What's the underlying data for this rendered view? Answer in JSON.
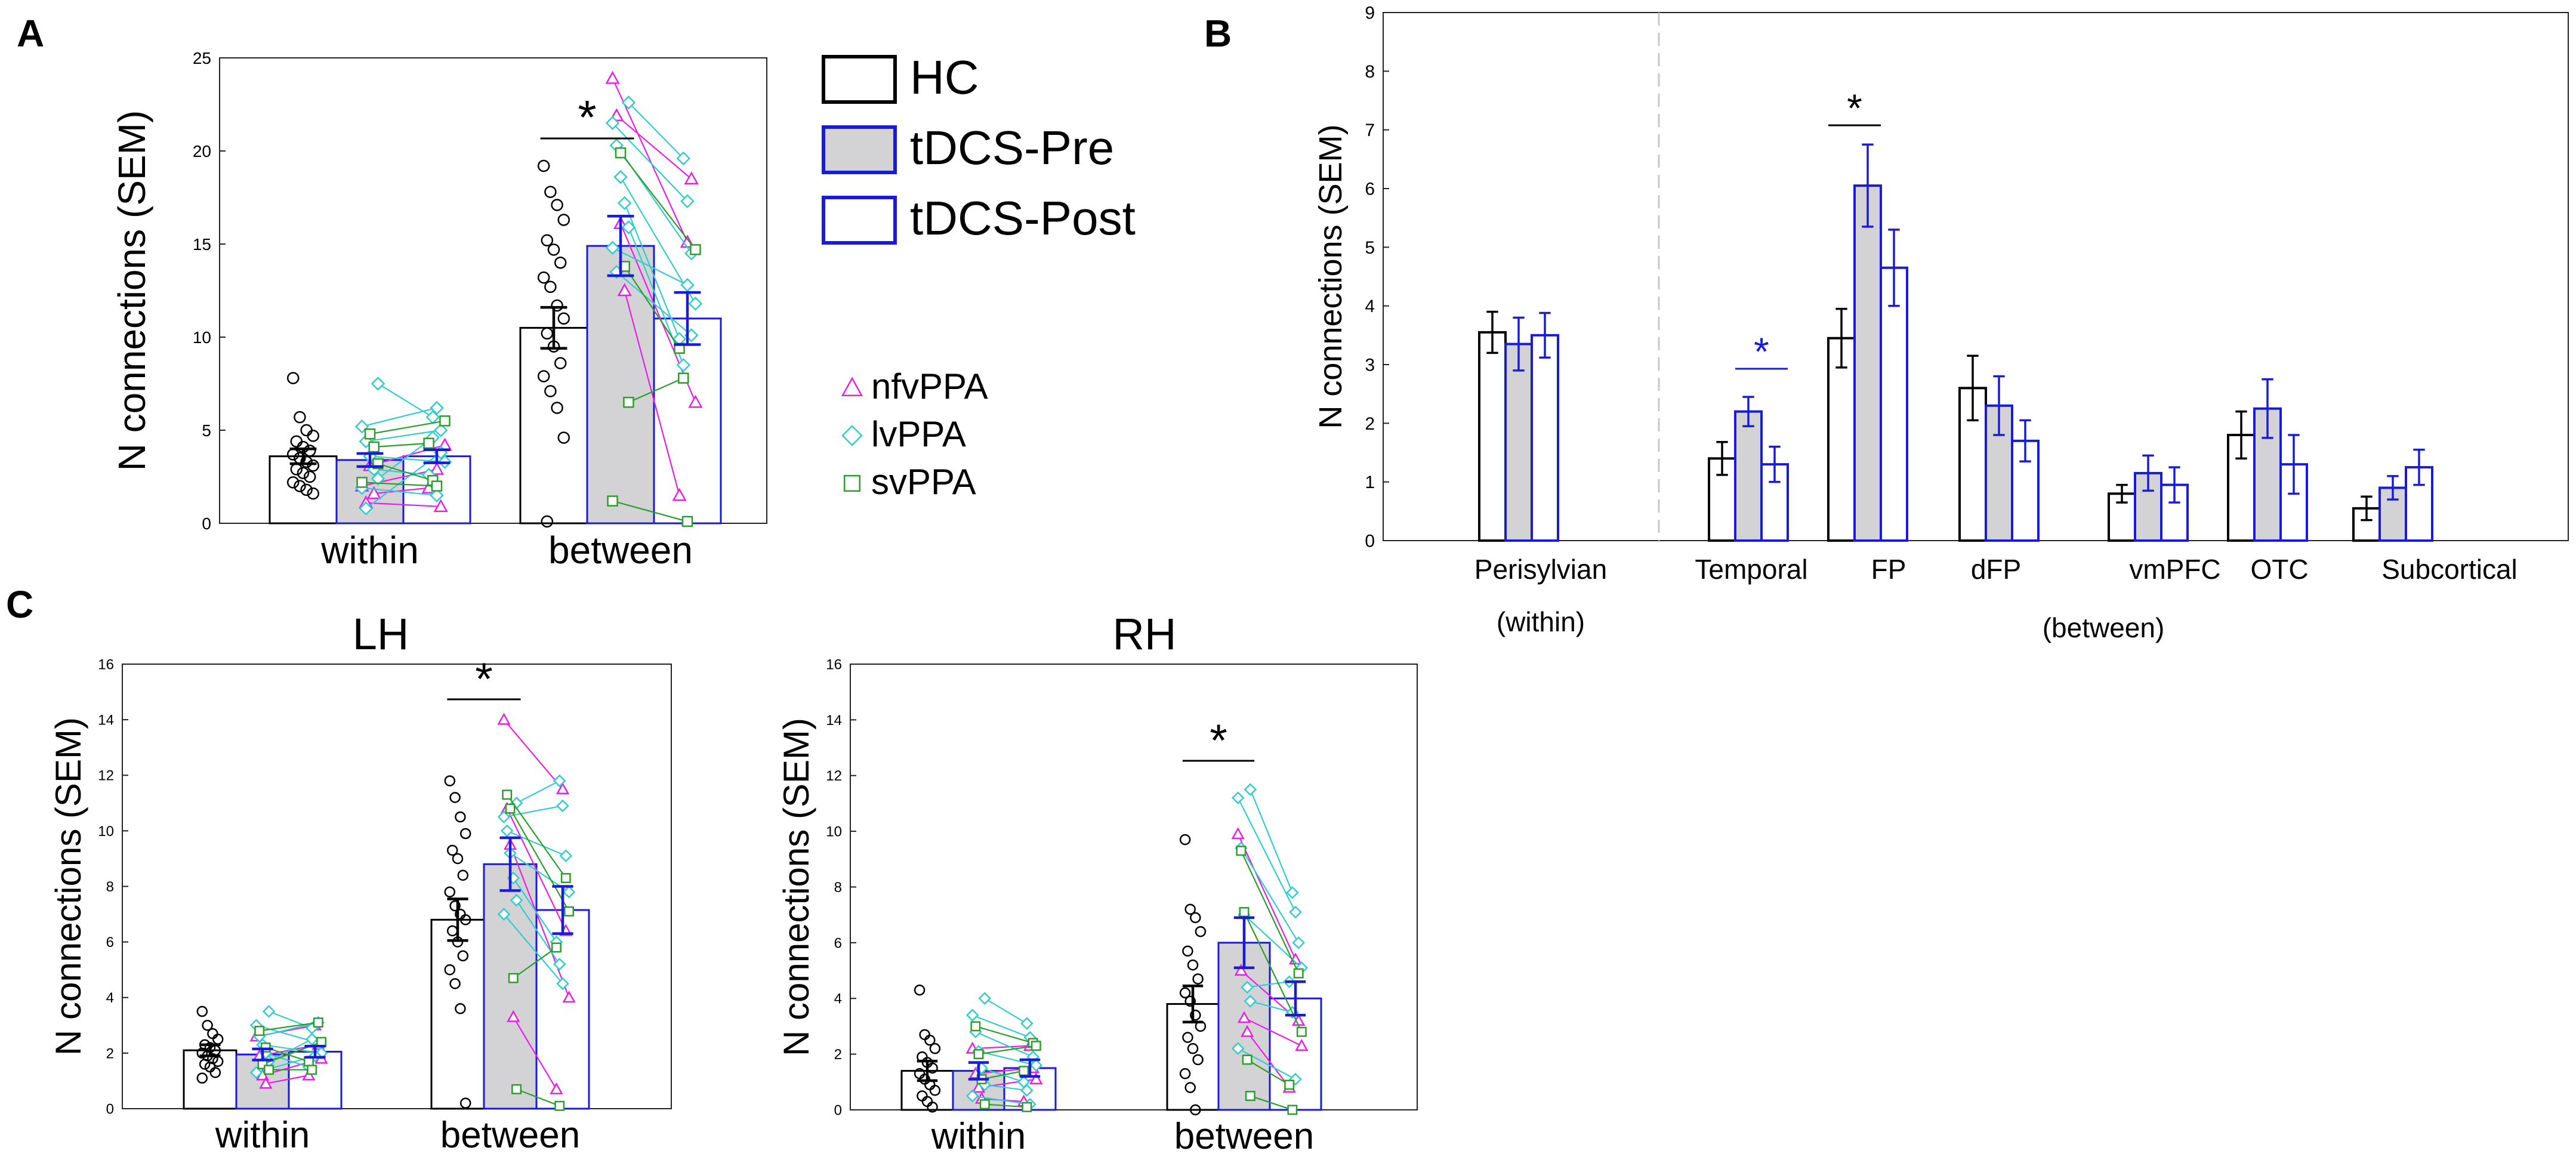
{
  "colors": {
    "hc": "#000000",
    "tdcs": "#1a1adb",
    "pre_fill": "#d3d3d6",
    "nfv": "#e81ee8",
    "lv": "#33cccc",
    "sv": "#2a9d2a",
    "dashed": "#c8c8c8"
  },
  "legend_groups": {
    "hc": "HC",
    "pre": "tDCS-Pre",
    "post": "tDCS-Post"
  },
  "legend_subtypes": {
    "nfv": "nfvPPA",
    "lv": "lvPPA",
    "sv": "svPPA"
  },
  "chart_data": [
    {
      "id": "A",
      "panel_label": "A",
      "type": "bar",
      "title": "",
      "ylabel": "N connections (SEM)",
      "ylim": [
        0,
        25
      ],
      "yticks": [
        "0",
        "5",
        "10",
        "15",
        "20",
        "25"
      ],
      "categories": [
        "within",
        "between"
      ],
      "series": [
        {
          "name": "HC",
          "values": [
            3.6,
            10.5
          ],
          "sem": [
            0.4,
            1.1
          ]
        },
        {
          "name": "tDCS-Pre",
          "values": [
            3.4,
            14.9
          ],
          "sem": [
            0.35,
            1.6
          ]
        },
        {
          "name": "tDCS-Post",
          "values": [
            3.6,
            11.0
          ],
          "sem": [
            0.35,
            1.4
          ]
        }
      ],
      "significance": [
        {
          "category": "between",
          "label": "*"
        }
      ],
      "hc_points": [
        [
          7.8,
          5.7,
          5.0,
          4.7,
          4.4,
          4.1,
          3.9,
          3.7,
          3.5,
          3.3,
          3.1,
          2.9,
          2.7,
          2.5,
          2.2,
          2.0,
          1.8,
          1.6
        ],
        [
          19.2,
          17.8,
          17.1,
          16.3,
          15.2,
          14.7,
          14.0,
          13.2,
          12.7,
          11.7,
          11.0,
          10.2,
          9.5,
          8.6,
          7.9,
          7.1,
          6.2,
          4.6,
          0.1
        ]
      ],
      "patients": [
        {
          "subtype": "nfv",
          "within": [
            2.0,
            2.9
          ],
          "between": [
            23.9,
            15.1
          ]
        },
        {
          "subtype": "nfv",
          "within": [
            1.1,
            0.9
          ],
          "between": [
            21.9,
            18.5
          ]
        },
        {
          "subtype": "nfv",
          "within": [
            3.1,
            4.2
          ],
          "between": [
            16.1,
            6.5
          ]
        },
        {
          "subtype": "nfv",
          "within": [
            1.6,
            1.9
          ],
          "between": [
            12.5,
            1.5
          ]
        },
        {
          "subtype": "lv",
          "within": [
            7.5,
            5.7
          ],
          "between": [
            22.6,
            19.6
          ]
        },
        {
          "subtype": "lv",
          "within": [
            5.2,
            6.2
          ],
          "between": [
            21.5,
            17.3
          ]
        },
        {
          "subtype": "lv",
          "within": [
            4.4,
            5.0
          ],
          "between": [
            20.3,
            14.5
          ]
        },
        {
          "subtype": "lv",
          "within": [
            3.6,
            3.3
          ],
          "between": [
            18.6,
            11.8
          ]
        },
        {
          "subtype": "lv",
          "within": [
            2.9,
            2.6
          ],
          "between": [
            17.2,
            9.9
          ]
        },
        {
          "subtype": "lv",
          "within": [
            2.4,
            4.6
          ],
          "between": [
            15.9,
            8.5
          ]
        },
        {
          "subtype": "lv",
          "within": [
            1.9,
            1.5
          ],
          "between": [
            14.8,
            12.8
          ]
        },
        {
          "subtype": "lv",
          "within": [
            0.8,
            3.8
          ],
          "between": [
            13.5,
            10.1
          ]
        },
        {
          "subtype": "sv",
          "within": [
            4.8,
            5.5
          ],
          "between": [
            19.9,
            14.7
          ]
        },
        {
          "subtype": "sv",
          "within": [
            4.1,
            4.3
          ],
          "between": [
            13.8,
            9.4
          ]
        },
        {
          "subtype": "sv",
          "within": [
            3.2,
            2.3
          ],
          "between": [
            6.5,
            7.8
          ]
        },
        {
          "subtype": "sv",
          "within": [
            2.2,
            2.0
          ],
          "between": [
            1.2,
            0.1
          ]
        }
      ]
    },
    {
      "id": "B",
      "panel_label": "B",
      "type": "bar",
      "title": "",
      "ylabel": "N connections (SEM)",
      "ylim": [
        0,
        9
      ],
      "yticks": [
        "0",
        "1",
        "2",
        "3",
        "4",
        "5",
        "6",
        "7",
        "8",
        "9"
      ],
      "categories": [
        "Perisylvian",
        "Temporal",
        "FP",
        "dFP",
        "vmPFC",
        "OTC",
        "Subcortical"
      ],
      "group_labels": [
        "(within)",
        "(between)"
      ],
      "series": [
        {
          "name": "HC",
          "values": [
            3.55,
            1.4,
            3.45,
            2.6,
            0.8,
            1.8,
            0.55
          ],
          "sem": [
            0.35,
            0.28,
            0.5,
            0.55,
            0.15,
            0.4,
            0.2
          ]
        },
        {
          "name": "tDCS-Pre",
          "values": [
            3.35,
            2.2,
            6.05,
            2.3,
            1.15,
            2.25,
            0.9
          ],
          "sem": [
            0.45,
            0.25,
            0.7,
            0.5,
            0.3,
            0.5,
            0.2
          ]
        },
        {
          "name": "tDCS-Post",
          "values": [
            3.5,
            1.3,
            4.65,
            1.7,
            0.95,
            1.3,
            1.25
          ],
          "sem": [
            0.38,
            0.3,
            0.65,
            0.35,
            0.3,
            0.5,
            0.3
          ]
        }
      ],
      "significance": [
        {
          "category": "Temporal",
          "label": "*",
          "pair": "pre-post",
          "color": "#1a1adb"
        },
        {
          "category": "FP",
          "label": "*",
          "pair": "hc-pre",
          "color": "#000000"
        }
      ]
    },
    {
      "id": "LH",
      "panel_label": "C",
      "type": "bar",
      "title": "LH",
      "ylabel": "N connections (SEM)",
      "ylim": [
        0,
        16
      ],
      "yticks": [
        "0",
        "2",
        "4",
        "6",
        "8",
        "10",
        "12",
        "14",
        "16"
      ],
      "categories": [
        "within",
        "between"
      ],
      "series": [
        {
          "name": "HC",
          "values": [
            2.1,
            6.8
          ],
          "sem": [
            0.2,
            0.75
          ]
        },
        {
          "name": "tDCS-Pre",
          "values": [
            1.95,
            8.8
          ],
          "sem": [
            0.2,
            0.95
          ]
        },
        {
          "name": "tDCS-Post",
          "values": [
            2.05,
            7.15
          ],
          "sem": [
            0.2,
            0.85
          ]
        }
      ],
      "significance": [
        {
          "category": "between",
          "label": "*"
        }
      ],
      "hc_points": [
        [
          3.5,
          3.0,
          2.7,
          2.5,
          2.3,
          2.2,
          2.1,
          2.0,
          1.9,
          1.8,
          1.7,
          1.6,
          1.5,
          1.3,
          1.1
        ],
        [
          11.8,
          11.2,
          10.5,
          9.9,
          9.3,
          9.0,
          8.4,
          7.8,
          7.3,
          7.0,
          6.8,
          6.4,
          6.0,
          5.5,
          5.0,
          4.5,
          3.6,
          0.2
        ]
      ],
      "patients": [
        {
          "subtype": "nfv",
          "within": [
            2.6,
            3.0
          ],
          "between": [
            14.0,
            11.5
          ]
        },
        {
          "subtype": "nfv",
          "within": [
            1.9,
            2.3
          ],
          "between": [
            10.8,
            6.4
          ]
        },
        {
          "subtype": "nfv",
          "within": [
            1.2,
            1.8
          ],
          "between": [
            9.5,
            4.0
          ]
        },
        {
          "subtype": "nfv",
          "within": [
            0.9,
            1.2
          ],
          "between": [
            3.3,
            0.7
          ]
        },
        {
          "subtype": "lv",
          "within": [
            3.5,
            2.9
          ],
          "between": [
            11.0,
            11.8
          ]
        },
        {
          "subtype": "lv",
          "within": [
            3.0,
            2.4
          ],
          "between": [
            10.5,
            10.9
          ]
        },
        {
          "subtype": "lv",
          "within": [
            2.6,
            3.1
          ],
          "between": [
            10.0,
            9.1
          ]
        },
        {
          "subtype": "lv",
          "within": [
            2.3,
            2.0
          ],
          "between": [
            9.2,
            7.8
          ]
        },
        {
          "subtype": "lv",
          "within": [
            2.0,
            1.5
          ],
          "between": [
            8.3,
            6.0
          ]
        },
        {
          "subtype": "lv",
          "within": [
            1.7,
            2.5
          ],
          "between": [
            7.5,
            5.2
          ]
        },
        {
          "subtype": "lv",
          "within": [
            1.3,
            1.9
          ],
          "between": [
            7.0,
            4.5
          ]
        },
        {
          "subtype": "sv",
          "within": [
            2.8,
            3.1
          ],
          "between": [
            11.3,
            8.3
          ]
        },
        {
          "subtype": "sv",
          "within": [
            1.6,
            2.4
          ],
          "between": [
            10.8,
            7.1
          ]
        },
        {
          "subtype": "sv",
          "within": [
            2.2,
            1.7
          ],
          "between": [
            4.7,
            5.8
          ]
        },
        {
          "subtype": "sv",
          "within": [
            1.4,
            1.4
          ],
          "between": [
            0.7,
            0.1
          ]
        }
      ]
    },
    {
      "id": "RH",
      "panel_label": "",
      "type": "bar",
      "title": "RH",
      "ylabel": "N connections (SEM)",
      "ylim": [
        0,
        16
      ],
      "yticks": [
        "0",
        "2",
        "4",
        "6",
        "8",
        "10",
        "12",
        "14",
        "16"
      ],
      "categories": [
        "within",
        "between"
      ],
      "series": [
        {
          "name": "HC",
          "values": [
            1.4,
            3.8
          ],
          "sem": [
            0.35,
            0.65
          ]
        },
        {
          "name": "tDCS-Pre",
          "values": [
            1.4,
            6.0
          ],
          "sem": [
            0.3,
            0.9
          ]
        },
        {
          "name": "tDCS-Post",
          "values": [
            1.5,
            4.0
          ],
          "sem": [
            0.3,
            0.6
          ]
        }
      ],
      "significance": [
        {
          "category": "between",
          "label": "*"
        }
      ],
      "hc_points": [
        [
          4.3,
          2.7,
          2.5,
          2.2,
          1.9,
          1.7,
          1.5,
          1.3,
          1.1,
          0.9,
          0.7,
          0.5,
          0.3,
          0.1
        ],
        [
          9.7,
          7.2,
          6.9,
          6.4,
          5.7,
          5.2,
          4.7,
          4.2,
          3.9,
          3.4,
          3.0,
          2.6,
          2.2,
          1.8,
          1.3,
          0.8,
          0.0
        ]
      ],
      "patients": [
        {
          "subtype": "nfv",
          "within": [
            2.2,
            2.3
          ],
          "between": [
            9.9,
            5.4
          ]
        },
        {
          "subtype": "nfv",
          "within": [
            1.3,
            1.5
          ],
          "between": [
            5.0,
            3.2
          ]
        },
        {
          "subtype": "nfv",
          "within": [
            0.8,
            1.1
          ],
          "between": [
            3.3,
            2.3
          ]
        },
        {
          "subtype": "nfv",
          "within": [
            0.4,
            0.3
          ],
          "between": [
            2.8,
            0.8
          ]
        },
        {
          "subtype": "lv",
          "within": [
            4.0,
            3.1
          ],
          "between": [
            11.5,
            7.8
          ]
        },
        {
          "subtype": "lv",
          "within": [
            3.4,
            2.6
          ],
          "between": [
            11.2,
            7.1
          ]
        },
        {
          "subtype": "lv",
          "within": [
            2.8,
            1.9
          ],
          "between": [
            9.4,
            6.0
          ]
        },
        {
          "subtype": "lv",
          "within": [
            2.1,
            1.6
          ],
          "between": [
            7.0,
            5.1
          ]
        },
        {
          "subtype": "lv",
          "within": [
            1.5,
            1.0
          ],
          "between": [
            4.4,
            4.6
          ]
        },
        {
          "subtype": "lv",
          "within": [
            0.9,
            0.7
          ],
          "between": [
            3.9,
            3.5
          ]
        },
        {
          "subtype": "lv",
          "within": [
            0.5,
            0.2
          ],
          "between": [
            2.2,
            1.1
          ]
        },
        {
          "subtype": "sv",
          "within": [
            3.0,
            2.4
          ],
          "between": [
            9.3,
            4.9
          ]
        },
        {
          "subtype": "sv",
          "within": [
            2.0,
            2.3
          ],
          "between": [
            7.1,
            2.8
          ]
        },
        {
          "subtype": "sv",
          "within": [
            1.1,
            1.4
          ],
          "between": [
            1.8,
            0.9
          ]
        },
        {
          "subtype": "sv",
          "within": [
            0.2,
            0.1
          ],
          "between": [
            0.5,
            0.0
          ]
        }
      ]
    }
  ]
}
